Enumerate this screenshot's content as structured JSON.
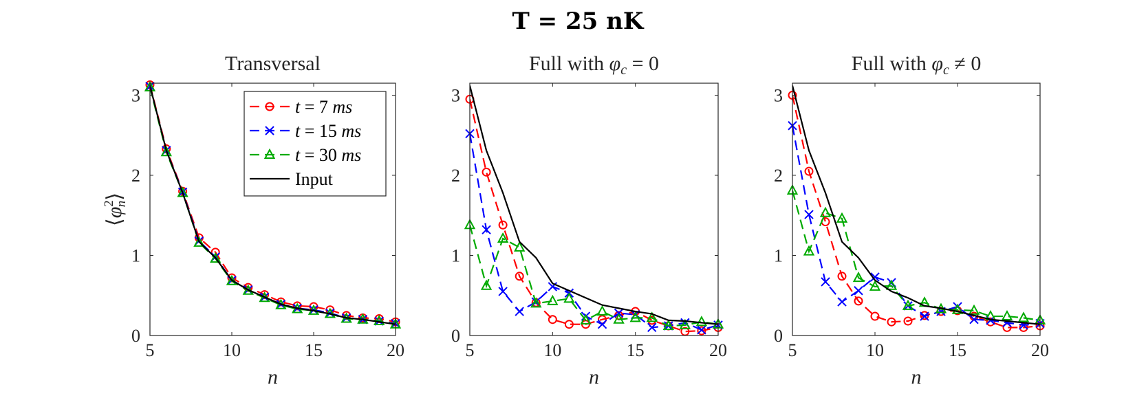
{
  "figure": {
    "suptitle": "T = 25 nK"
  },
  "chart_data": [
    {
      "type": "line",
      "title": "Transversal",
      "xlabel": "n",
      "ylabel": "⟨φ_n^2⟩",
      "xlim": [
        5,
        20
      ],
      "ylim": [
        0,
        3.15
      ],
      "xticks": [
        5,
        10,
        15,
        20
      ],
      "yticks": [
        0,
        1,
        2,
        3
      ],
      "grid": false,
      "legend": {
        "placement": "top-right"
      },
      "x": [
        5,
        6,
        7,
        8,
        9,
        10,
        11,
        12,
        13,
        14,
        15,
        16,
        17,
        18,
        19,
        20
      ],
      "series": [
        {
          "name": "t = 7 ms",
          "color": "#ff0000",
          "marker": "circle",
          "dash": "dashed",
          "values": [
            3.13,
            2.33,
            1.8,
            1.22,
            1.04,
            0.72,
            0.6,
            0.51,
            0.42,
            0.37,
            0.36,
            0.32,
            0.25,
            0.22,
            0.21,
            0.17
          ]
        },
        {
          "name": "t = 15 ms",
          "color": "#0000ff",
          "marker": "x",
          "dash": "dashed",
          "values": [
            3.11,
            2.31,
            1.79,
            1.18,
            0.98,
            0.69,
            0.57,
            0.48,
            0.39,
            0.34,
            0.32,
            0.28,
            0.22,
            0.2,
            0.18,
            0.15
          ]
        },
        {
          "name": "t = 30 ms",
          "color": "#00aa00",
          "marker": "triangle",
          "dash": "dashed",
          "values": [
            3.1,
            2.29,
            1.78,
            1.16,
            0.96,
            0.68,
            0.56,
            0.47,
            0.38,
            0.33,
            0.31,
            0.27,
            0.21,
            0.2,
            0.18,
            0.14
          ]
        },
        {
          "name": "Input",
          "color": "#000000",
          "marker": "none",
          "dash": "solid",
          "values": [
            3.12,
            2.31,
            1.78,
            1.17,
            0.97,
            0.69,
            0.57,
            0.48,
            0.39,
            0.34,
            0.31,
            0.27,
            0.22,
            0.2,
            0.17,
            0.14
          ]
        }
      ]
    },
    {
      "type": "line",
      "title": "Full with φc = 0",
      "xlabel": "n",
      "ylabel": "",
      "xlim": [
        5,
        20
      ],
      "ylim": [
        0,
        3.15
      ],
      "xticks": [
        5,
        10,
        15,
        20
      ],
      "yticks": [
        0,
        1,
        2,
        3
      ],
      "grid": false,
      "x": [
        5,
        6,
        7,
        8,
        9,
        10,
        11,
        12,
        13,
        14,
        15,
        16,
        17,
        18,
        19,
        20
      ],
      "series": [
        {
          "name": "t = 7 ms",
          "color": "#ff0000",
          "marker": "circle",
          "dash": "dashed",
          "values": [
            2.95,
            2.04,
            1.38,
            0.74,
            0.41,
            0.2,
            0.14,
            0.14,
            0.2,
            0.25,
            0.3,
            0.19,
            0.12,
            0.05,
            0.06,
            0.1
          ]
        },
        {
          "name": "t = 15 ms",
          "color": "#0000ff",
          "marker": "x",
          "dash": "dashed",
          "values": [
            2.52,
            1.32,
            0.55,
            0.3,
            0.42,
            0.61,
            0.53,
            0.24,
            0.14,
            0.28,
            0.26,
            0.1,
            0.12,
            0.16,
            0.07,
            0.13
          ]
        },
        {
          "name": "t = 30 ms",
          "color": "#00aa00",
          "marker": "triangle",
          "dash": "dashed",
          "values": [
            1.38,
            0.62,
            1.21,
            1.1,
            0.4,
            0.43,
            0.46,
            0.19,
            0.3,
            0.2,
            0.22,
            0.22,
            0.12,
            0.13,
            0.17,
            0.14
          ]
        },
        {
          "name": "Input",
          "color": "#000000",
          "marker": "none",
          "dash": "solid",
          "values": [
            3.12,
            2.31,
            1.78,
            1.17,
            0.97,
            0.65,
            0.56,
            0.47,
            0.38,
            0.34,
            0.3,
            0.27,
            0.19,
            0.18,
            0.16,
            0.14
          ]
        }
      ]
    },
    {
      "type": "line",
      "title": "Full with φc ≠ 0",
      "xlabel": "n",
      "ylabel": "",
      "xlim": [
        5,
        20
      ],
      "ylim": [
        0,
        3.15
      ],
      "xticks": [
        5,
        10,
        15,
        20
      ],
      "yticks": [
        0,
        1,
        2,
        3
      ],
      "grid": false,
      "x": [
        5,
        6,
        7,
        8,
        9,
        10,
        11,
        12,
        13,
        14,
        15,
        16,
        17,
        18,
        19,
        20
      ],
      "series": [
        {
          "name": "t = 7 ms",
          "color": "#ff0000",
          "marker": "circle",
          "dash": "dashed",
          "values": [
            3.0,
            2.05,
            1.42,
            0.74,
            0.43,
            0.24,
            0.17,
            0.18,
            0.25,
            0.3,
            0.31,
            0.24,
            0.17,
            0.1,
            0.1,
            0.12
          ]
        },
        {
          "name": "t = 15 ms",
          "color": "#0000ff",
          "marker": "x",
          "dash": "dashed",
          "values": [
            2.62,
            1.51,
            0.67,
            0.42,
            0.56,
            0.73,
            0.66,
            0.37,
            0.24,
            0.3,
            0.36,
            0.2,
            0.19,
            0.16,
            0.13,
            0.15
          ]
        },
        {
          "name": "t = 30 ms",
          "color": "#00aa00",
          "marker": "triangle",
          "dash": "dashed",
          "values": [
            1.81,
            1.05,
            1.53,
            1.46,
            0.72,
            0.61,
            0.62,
            0.37,
            0.41,
            0.33,
            0.32,
            0.31,
            0.24,
            0.24,
            0.22,
            0.19
          ]
        },
        {
          "name": "Input",
          "color": "#000000",
          "marker": "none",
          "dash": "solid",
          "values": [
            3.12,
            2.31,
            1.78,
            1.17,
            0.97,
            0.69,
            0.55,
            0.47,
            0.37,
            0.34,
            0.3,
            0.25,
            0.2,
            0.18,
            0.16,
            0.14
          ]
        }
      ]
    }
  ]
}
